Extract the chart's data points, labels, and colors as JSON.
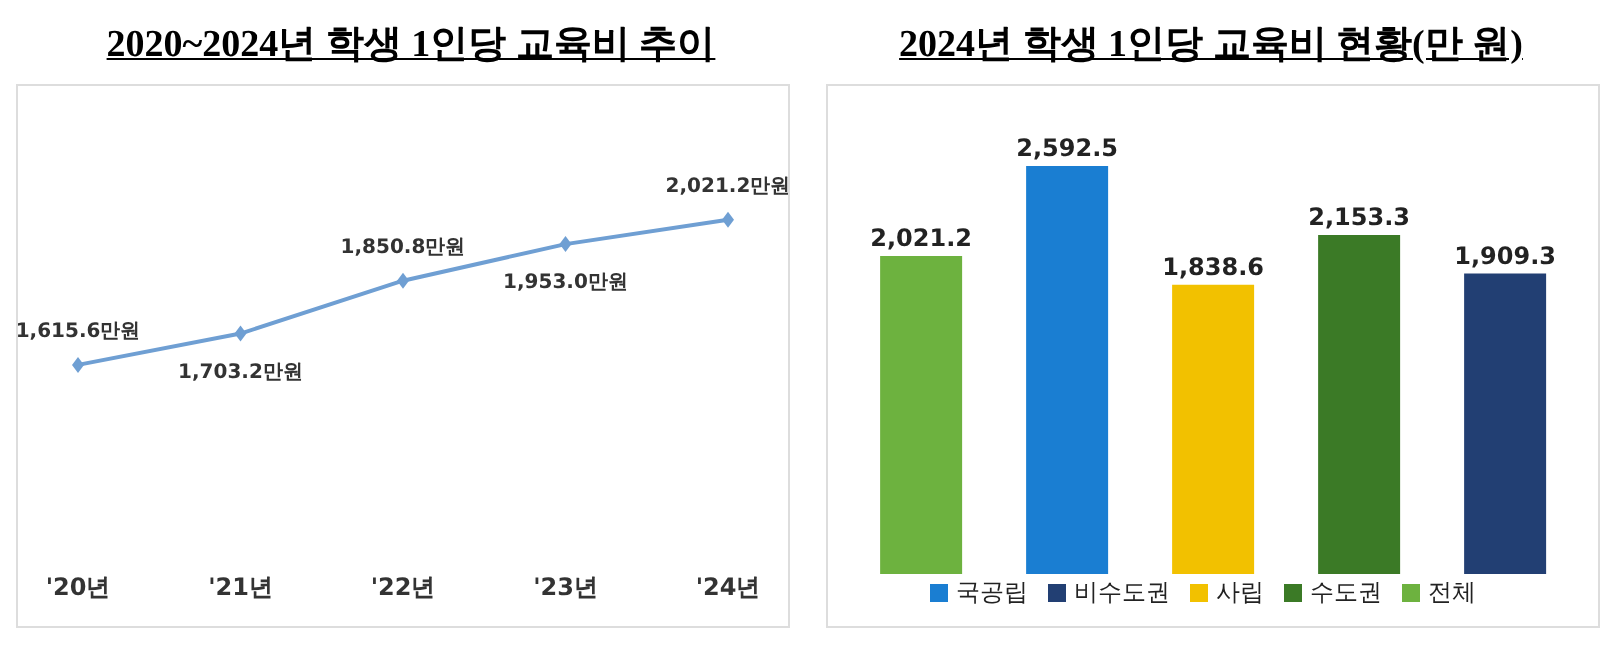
{
  "chart_data": [
    {
      "type": "line",
      "title": "2020~2024년 학생 1인당 교육비 추이",
      "categories": [
        "'20년",
        "'21년",
        "'22년",
        "'23년",
        "'24년"
      ],
      "values": [
        1615.6,
        1703.2,
        1850.8,
        1953.0,
        2021.2
      ],
      "value_labels": [
        "1,615.6만원",
        "1,703.2만원",
        "1,850.8만원",
        "1,953.0만원",
        "2,021.2만원"
      ],
      "color": "#6f9fd3",
      "marker": "diamond",
      "tick_labels": "x"
    },
    {
      "type": "bar",
      "title": "2024년 학생 1인당 교육비 현황(만 원)",
      "categories": [
        null,
        null,
        null,
        null,
        null
      ],
      "stacked": true,
      "series": [
        {
          "name": "전체",
          "color": "#6db23f",
          "values": [
            2021.2,
            null,
            null,
            null,
            null
          ],
          "value_labels": [
            "2,021.2",
            null,
            null,
            null,
            null
          ]
        },
        {
          "name": "국공립",
          "color": "#1a7ed2",
          "values": [
            null,
            2592.5,
            null,
            null,
            null
          ],
          "value_labels": [
            null,
            "2,592.5",
            null,
            null,
            null
          ]
        },
        {
          "name": "사립",
          "color": "#f2c100",
          "values": [
            null,
            null,
            1838.6,
            null,
            null
          ],
          "value_labels": [
            null,
            null,
            "1,838.6",
            null,
            null
          ]
        },
        {
          "name": "수도권",
          "color": "#3b7a26",
          "values": [
            null,
            null,
            null,
            2153.3,
            null
          ],
          "value_labels": [
            null,
            null,
            null,
            "2,153.3",
            null
          ]
        },
        {
          "name": "비수도권",
          "color": "#223f73",
          "values": [
            null,
            null,
            null,
            null,
            1909.3
          ],
          "value_labels": [
            null,
            null,
            null,
            null,
            "1,909.3"
          ]
        }
      ],
      "legend": "bottom",
      "tick_labels": false
    }
  ]
}
